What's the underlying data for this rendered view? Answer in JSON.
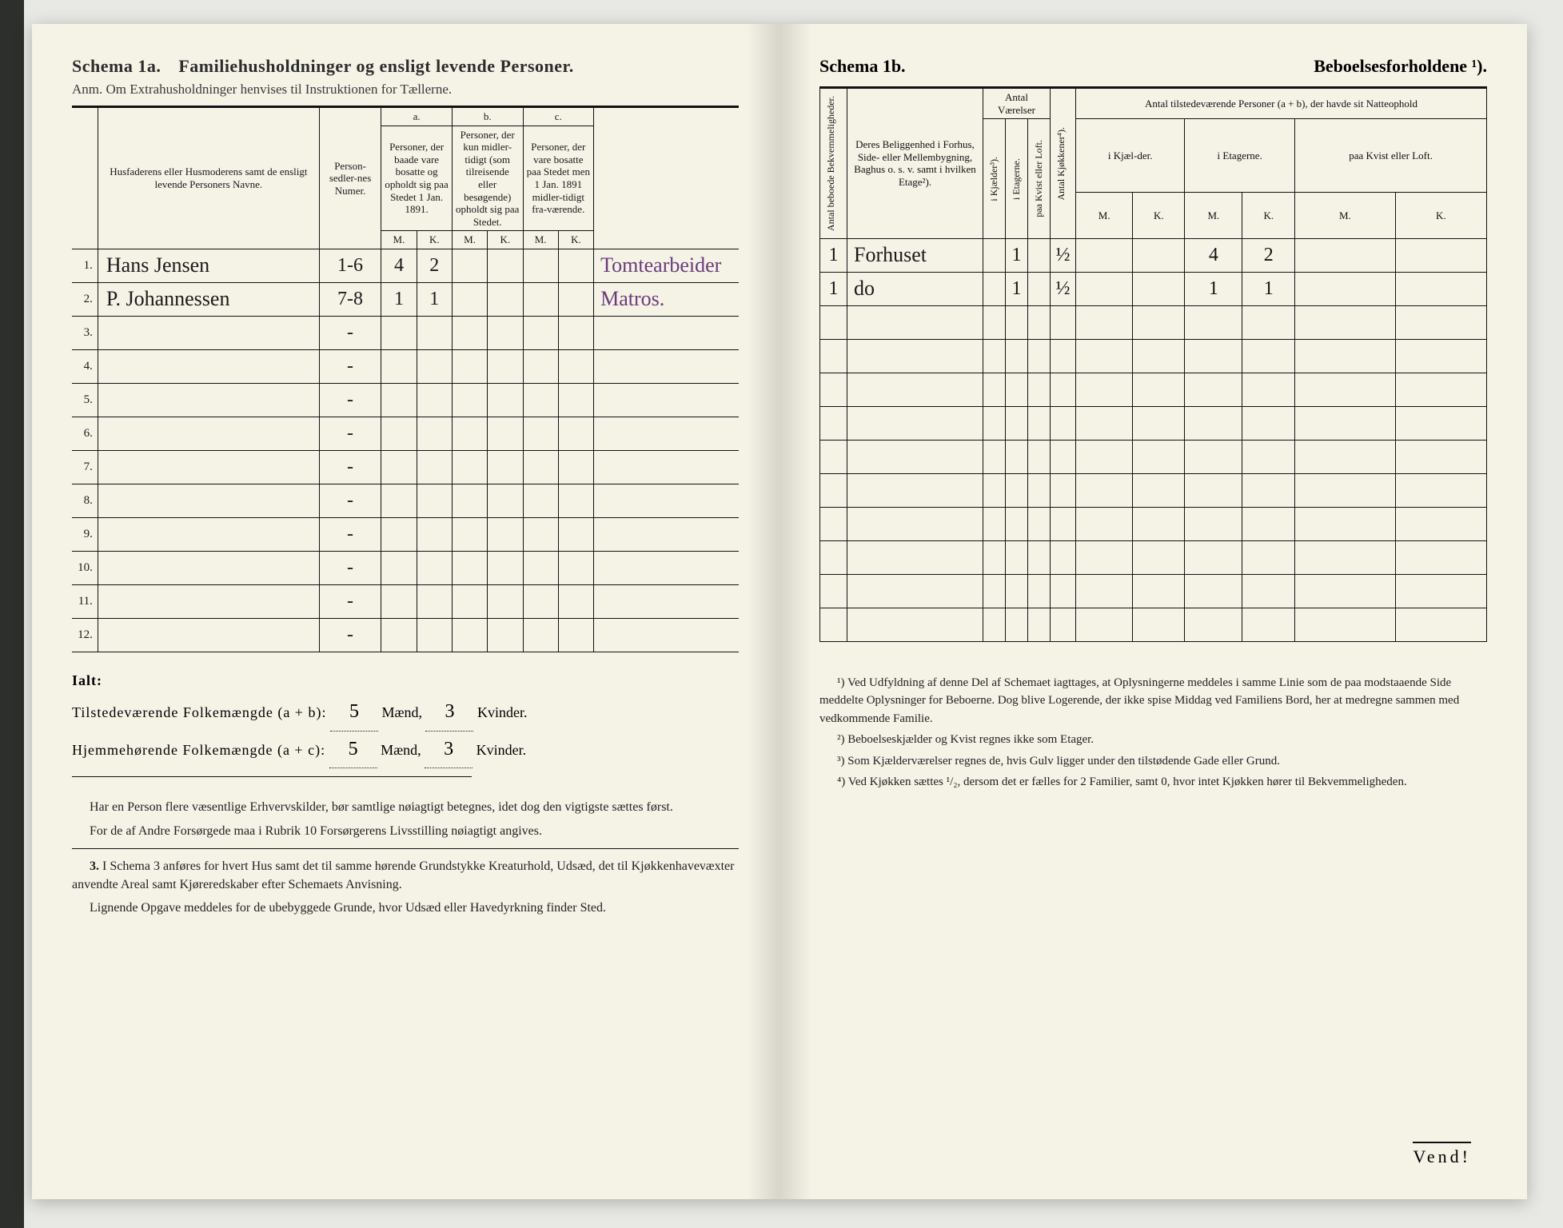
{
  "left": {
    "schema_label": "Schema 1a.",
    "schema_title": "Familiehusholdninger og ensligt levende Personer.",
    "anm_label": "Anm.",
    "anm_text": "Om Extrahusholdninger henvises til Instruktionen for Tællerne.",
    "headers": {
      "name": "Husfaderens eller Husmoderens samt de ensligt levende Personers Navne.",
      "numer": "Person-sedler-nes Numer.",
      "a_label": "a.",
      "a_text": "Personer, der baade vare bosatte og opholdt sig paa Stedet 1 Jan. 1891.",
      "b_label": "b.",
      "b_text": "Personer, der kun midler-tidigt (som tilreisende eller besøgende) opholdt sig paa Stedet.",
      "c_label": "c.",
      "c_text": "Personer, der vare bosatte paa Stedet men 1 Jan. 1891 midler-tidigt fra-værende.",
      "m": "M.",
      "k": "K."
    },
    "rows": [
      {
        "n": "1.",
        "name": "Hans Jensen",
        "numer": "1-6",
        "a_m": "4",
        "a_k": "2",
        "b_m": "",
        "b_k": "",
        "c_m": "",
        "c_k": "",
        "occ": "Tomtearbeider"
      },
      {
        "n": "2.",
        "name": "P. Johannessen",
        "numer": "7-8",
        "a_m": "1",
        "a_k": "1",
        "b_m": "",
        "b_k": "",
        "c_m": "",
        "c_k": "",
        "occ": "Matros."
      },
      {
        "n": "3.",
        "name": "",
        "numer": "-",
        "a_m": "",
        "a_k": "",
        "b_m": "",
        "b_k": "",
        "c_m": "",
        "c_k": "",
        "occ": ""
      },
      {
        "n": "4.",
        "name": "",
        "numer": "-",
        "a_m": "",
        "a_k": "",
        "b_m": "",
        "b_k": "",
        "c_m": "",
        "c_k": "",
        "occ": ""
      },
      {
        "n": "5.",
        "name": "",
        "numer": "-",
        "a_m": "",
        "a_k": "",
        "b_m": "",
        "b_k": "",
        "c_m": "",
        "c_k": "",
        "occ": ""
      },
      {
        "n": "6.",
        "name": "",
        "numer": "-",
        "a_m": "",
        "a_k": "",
        "b_m": "",
        "b_k": "",
        "c_m": "",
        "c_k": "",
        "occ": ""
      },
      {
        "n": "7.",
        "name": "",
        "numer": "-",
        "a_m": "",
        "a_k": "",
        "b_m": "",
        "b_k": "",
        "c_m": "",
        "c_k": "",
        "occ": ""
      },
      {
        "n": "8.",
        "name": "",
        "numer": "-",
        "a_m": "",
        "a_k": "",
        "b_m": "",
        "b_k": "",
        "c_m": "",
        "c_k": "",
        "occ": ""
      },
      {
        "n": "9.",
        "name": "",
        "numer": "-",
        "a_m": "",
        "a_k": "",
        "b_m": "",
        "b_k": "",
        "c_m": "",
        "c_k": "",
        "occ": ""
      },
      {
        "n": "10.",
        "name": "",
        "numer": "-",
        "a_m": "",
        "a_k": "",
        "b_m": "",
        "b_k": "",
        "c_m": "",
        "c_k": "",
        "occ": ""
      },
      {
        "n": "11.",
        "name": "",
        "numer": "-",
        "a_m": "",
        "a_k": "",
        "b_m": "",
        "b_k": "",
        "c_m": "",
        "c_k": "",
        "occ": ""
      },
      {
        "n": "12.",
        "name": "",
        "numer": "-",
        "a_m": "",
        "a_k": "",
        "b_m": "",
        "b_k": "",
        "c_m": "",
        "c_k": "",
        "occ": ""
      }
    ],
    "totals": {
      "ialt": "Ialt:",
      "line1_label": "Tilstedeværende Folkemængde (a + b):",
      "line1_m": "5",
      "line1_m_unit": "Mænd,",
      "line1_k": "3",
      "line1_k_unit": "Kvinder.",
      "line2_label": "Hjemmehørende Folkemængde (a + c):",
      "line2_m": "5",
      "line2_m_unit": "Mænd,",
      "line2_k": "3",
      "line2_k_unit": "Kvinder."
    },
    "foot1": "Har en Person flere væsentlige Erhvervskilder, bør samtlige nøiagtigt betegnes, idet dog den vigtigste sættes først.",
    "foot2": "For de af Andre Forsørgede maa i Rubrik 10 Forsørgerens Livsstilling nøiagtigt angives.",
    "foot3_num": "3.",
    "foot3": "I Schema 3 anføres for hvert Hus samt det til samme hørende Grundstykke Kreaturhold, Udsæd, det til Kjøkkenhavevæxter anvendte Areal samt Kjøreredskaber efter Schemaets Anvisning.",
    "foot4": "Lignende Opgave meddeles for de ubebyggede Grunde, hvor Udsæd eller Havedyrkning finder Sted."
  },
  "right": {
    "schema_label": "Schema 1b.",
    "schema_title": "Beboelsesforholdene ¹).",
    "headers": {
      "antal_bek": "Antal beboede Bekvemmeligheder.",
      "belig": "Deres Beliggenhed i Forhus, Side- eller Mellembygning, Baghus o. s. v. samt i hvilken Etage²).",
      "vaerelser": "Antal Værelser",
      "kjael": "i Kjælder³).",
      "etag": "i Etagerne.",
      "kvist": "paa Kvist eller Loft.",
      "kjok": "Antal Kjøkkener⁴).",
      "tilstede": "Antal tilstedeværende Personer (a + b), der havde sit Natteophold",
      "ik": "i Kjæl-der.",
      "ie": "i Etagerne.",
      "pk": "paa Kvist eller Loft.",
      "m": "M.",
      "k": "K."
    },
    "rows": [
      {
        "bek": "1",
        "loc": "Forhuset",
        "kj": "",
        "et": "1",
        "kv": "",
        "kk": "½",
        "ik_m": "",
        "ik_k": "",
        "ie_m": "4",
        "ie_k": "2",
        "pk_m": "",
        "pk_k": ""
      },
      {
        "bek": "1",
        "loc": "do",
        "kj": "",
        "et": "1",
        "kv": "",
        "kk": "½",
        "ik_m": "",
        "ik_k": "",
        "ie_m": "1",
        "ie_k": "1",
        "pk_m": "",
        "pk_k": ""
      },
      {
        "bek": "",
        "loc": "",
        "kj": "",
        "et": "",
        "kv": "",
        "kk": "",
        "ik_m": "",
        "ik_k": "",
        "ie_m": "",
        "ie_k": "",
        "pk_m": "",
        "pk_k": ""
      },
      {
        "bek": "",
        "loc": "",
        "kj": "",
        "et": "",
        "kv": "",
        "kk": "",
        "ik_m": "",
        "ik_k": "",
        "ie_m": "",
        "ie_k": "",
        "pk_m": "",
        "pk_k": ""
      },
      {
        "bek": "",
        "loc": "",
        "kj": "",
        "et": "",
        "kv": "",
        "kk": "",
        "ik_m": "",
        "ik_k": "",
        "ie_m": "",
        "ie_k": "",
        "pk_m": "",
        "pk_k": ""
      },
      {
        "bek": "",
        "loc": "",
        "kj": "",
        "et": "",
        "kv": "",
        "kk": "",
        "ik_m": "",
        "ik_k": "",
        "ie_m": "",
        "ie_k": "",
        "pk_m": "",
        "pk_k": ""
      },
      {
        "bek": "",
        "loc": "",
        "kj": "",
        "et": "",
        "kv": "",
        "kk": "",
        "ik_m": "",
        "ik_k": "",
        "ie_m": "",
        "ie_k": "",
        "pk_m": "",
        "pk_k": ""
      },
      {
        "bek": "",
        "loc": "",
        "kj": "",
        "et": "",
        "kv": "",
        "kk": "",
        "ik_m": "",
        "ik_k": "",
        "ie_m": "",
        "ie_k": "",
        "pk_m": "",
        "pk_k": ""
      },
      {
        "bek": "",
        "loc": "",
        "kj": "",
        "et": "",
        "kv": "",
        "kk": "",
        "ik_m": "",
        "ik_k": "",
        "ie_m": "",
        "ie_k": "",
        "pk_m": "",
        "pk_k": ""
      },
      {
        "bek": "",
        "loc": "",
        "kj": "",
        "et": "",
        "kv": "",
        "kk": "",
        "ik_m": "",
        "ik_k": "",
        "ie_m": "",
        "ie_k": "",
        "pk_m": "",
        "pk_k": ""
      },
      {
        "bek": "",
        "loc": "",
        "kj": "",
        "et": "",
        "kv": "",
        "kk": "",
        "ik_m": "",
        "ik_k": "",
        "ie_m": "",
        "ie_k": "",
        "pk_m": "",
        "pk_k": ""
      },
      {
        "bek": "",
        "loc": "",
        "kj": "",
        "et": "",
        "kv": "",
        "kk": "",
        "ik_m": "",
        "ik_k": "",
        "ie_m": "",
        "ie_k": "",
        "pk_m": "",
        "pk_k": ""
      }
    ],
    "note1": "¹) Ved Udfyldning af denne Del af Schemaet iagttages, at Oplysningerne meddeles i samme Linie som de paa modstaaende Side meddelte Oplysninger for Beboerne. Dog blive Logerende, der ikke spise Middag ved Familiens Bord, her at medregne sammen med vedkommende Familie.",
    "note2": "²) Beboelseskjælder og Kvist regnes ikke som Etager.",
    "note3": "³) Som Kjælderværelser regnes de, hvis Gulv ligger under den tilstødende Gade eller Grund.",
    "note4": "⁴) Ved Kjøkken sættes ¹/₂, dersom det er fælles for 2 Familier, samt 0, hvor intet Kjøkken hører til Bekvemmeligheden.",
    "vend": "Vend!"
  }
}
